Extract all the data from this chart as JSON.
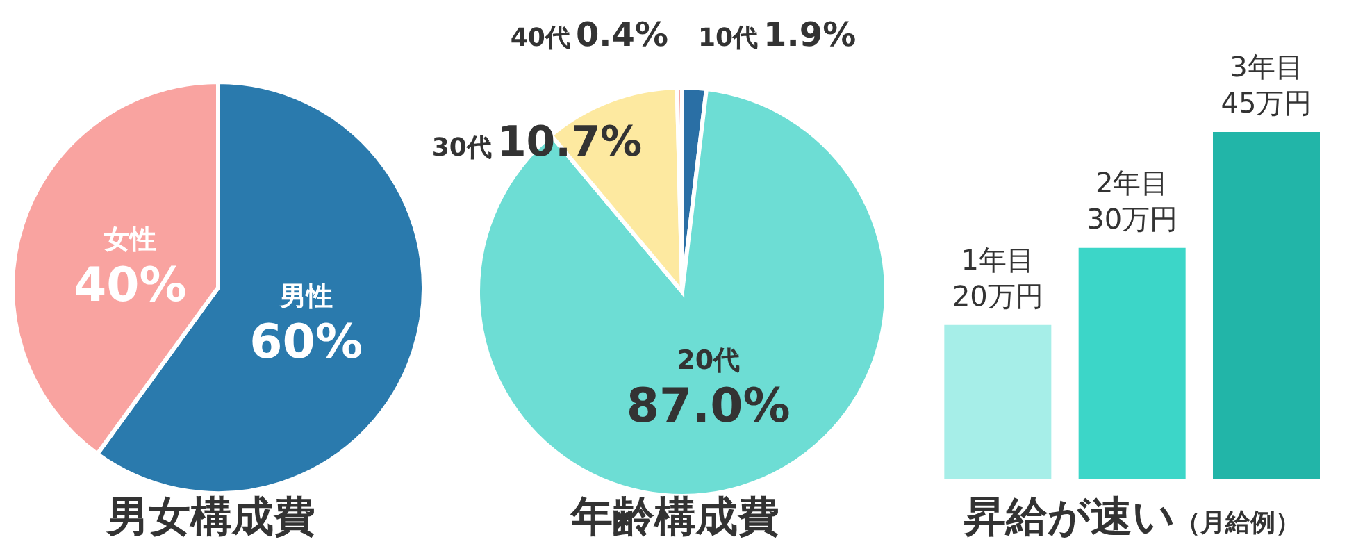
{
  "chart_data": [
    {
      "type": "pie",
      "title": "男女構成費",
      "categories": [
        "男性",
        "女性"
      ],
      "values": [
        60,
        40
      ],
      "value_labels": [
        "60%",
        "40%"
      ],
      "colors": [
        "#2a7aad",
        "#f9a3a0"
      ],
      "legend": false
    },
    {
      "type": "pie",
      "title": "年齢構成費",
      "categories": [
        "10代",
        "20代",
        "30代",
        "40代"
      ],
      "values": [
        1.9,
        87.0,
        10.7,
        0.4
      ],
      "value_labels": [
        "1.9%",
        "87.0%",
        "10.7%",
        "0.4%"
      ],
      "colors": [
        "#2a6fa5",
        "#6dddd4",
        "#fde9a0",
        "#f4a3a3"
      ],
      "legend": false
    },
    {
      "type": "bar",
      "title": "昇給が速い",
      "subtitle": "（月給例）",
      "categories": [
        "1年目",
        "2年目",
        "3年目"
      ],
      "values": [
        20,
        30,
        45
      ],
      "value_labels": [
        "20万円",
        "30万円",
        "45万円"
      ],
      "colors": [
        "#a6eee8",
        "#3cd6c8",
        "#22b5a8"
      ],
      "legend": false
    }
  ]
}
